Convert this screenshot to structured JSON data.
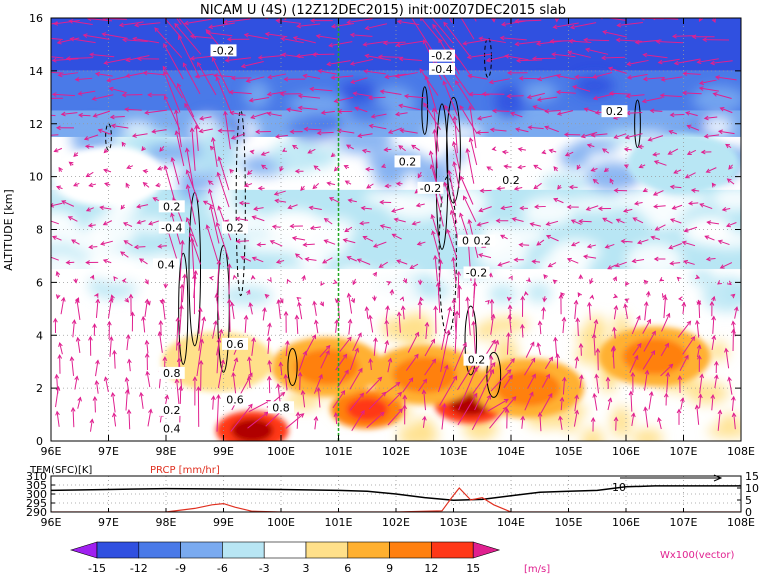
{
  "title": "NICAM U (4S) (12Z12DEC2015) init:00Z07DEC2015 slab",
  "main_ylabel": "ALTITUDE [km]",
  "x_ticks": [
    "96E",
    "97E",
    "98E",
    "99E",
    "100E",
    "101E",
    "102E",
    "103E",
    "104E",
    "105E",
    "106E",
    "107E",
    "108E"
  ],
  "y_ticks": [
    "0",
    "2",
    "4",
    "6",
    "8",
    "10",
    "12",
    "14",
    "16"
  ],
  "contour_labels": [
    "-0.2",
    "0.2",
    "-0.4",
    "0.2",
    "0.4",
    "0.6",
    "0.8",
    "0.2",
    "0.4",
    "0.6",
    "0.8",
    "0.2",
    "0.2",
    "-0.2",
    "0.2",
    "-0.2",
    "-0.4",
    "0.2",
    "0.2",
    "-0.2",
    "0.2"
  ],
  "sub_left_label": "TEM(SFC)[K]",
  "sub_right_label": "PRCP [mm/hr]",
  "sub_left_ticks": [
    "310",
    "305",
    "300",
    "295",
    "290"
  ],
  "sub_right_ticks": [
    "15",
    "10",
    "5",
    "0"
  ],
  "sub_arrow_label": "10",
  "colorbar_ticks": [
    "-15",
    "-12",
    "-9",
    "-6",
    "-3",
    "3",
    "6",
    "9",
    "12",
    "15"
  ],
  "colorbar_unit": "[m/s]",
  "vector_label": "Wx100(vector)",
  "colors": {
    "accent_vector": "#e0208f",
    "precip": "#e03020",
    "vertical_line": "#22aa22"
  },
  "chart_data": [
    {
      "type": "heatmap",
      "title": "NICAM U (4S) (12Z12DEC2015) init:00Z07DEC2015 slab",
      "ylabel": "ALTITUDE [km]",
      "xlim": [
        96,
        108
      ],
      "ylim": [
        0,
        16
      ],
      "x_ticks": [
        "96E",
        "97E",
        "98E",
        "99E",
        "100E",
        "101E",
        "102E",
        "103E",
        "104E",
        "105E",
        "106E",
        "107E",
        "108E"
      ],
      "y_ticks": [
        0,
        2,
        4,
        6,
        8,
        10,
        12,
        14,
        16
      ],
      "color_levels": [
        -15,
        -12,
        -9,
        -6,
        -3,
        3,
        6,
        9,
        12,
        15
      ],
      "color_unit": "[m/s]",
      "colors": [
        "#a020f0",
        "#3050e0",
        "#4a7ae8",
        "#7aaaf0",
        "#b8e6f4",
        "#ffffff",
        "#ffe08a",
        "#ffb030",
        "#ff8010",
        "#ff3818",
        "#b00000"
      ],
      "layers": [
        {
          "ymin": 14.0,
          "ymax": 16.0,
          "u": -15
        },
        {
          "ymin": 12.5,
          "ymax": 14.0,
          "u": -12
        },
        {
          "ymin": 11.5,
          "ymax": 12.5,
          "u": -9
        },
        {
          "ymin": 9.5,
          "ymax": 11.5,
          "u": -3
        },
        {
          "ymin": 6.5,
          "ymax": 9.5,
          "u": -6
        },
        {
          "ymin": 5.0,
          "ymax": 6.5,
          "u": 0
        },
        {
          "ymin": 0.0,
          "ymax": 5.0,
          "u": 0
        }
      ],
      "blobs": [
        {
          "x": 99.5,
          "y": 0.4,
          "u": 12
        },
        {
          "x": 103.3,
          "y": 1.4,
          "u": 12
        },
        {
          "x": 101.5,
          "y": 1.2,
          "u": 9
        },
        {
          "x": 102.5,
          "y": 2.5,
          "u": 6
        },
        {
          "x": 104.3,
          "y": 2.0,
          "u": 6
        },
        {
          "x": 106.5,
          "y": 3.2,
          "u": 6
        },
        {
          "x": 100.8,
          "y": 2.8,
          "u": 6
        },
        {
          "x": 98.9,
          "y": 3.0,
          "u": 3
        },
        {
          "x": 107.0,
          "y": 10.5,
          "u": -6
        },
        {
          "x": 97.0,
          "y": 10.0,
          "u": -3
        }
      ],
      "vertical_marker_x": 101.0
    },
    {
      "type": "line",
      "xlim": [
        96,
        108
      ],
      "left_ylabel": "TEM(SFC)[K]",
      "left_ylim": [
        290,
        310
      ],
      "right_ylabel": "PRCP [mm/hr]",
      "right_ylim": [
        0,
        15
      ],
      "series": [
        {
          "x": [
            96,
            97,
            98,
            99,
            100,
            101,
            101.5,
            102,
            102.5,
            103,
            103.5,
            104,
            104.5,
            105,
            105.5,
            106,
            106.5,
            107,
            108
          ],
          "y": [
            302,
            302.5,
            303,
            302.8,
            302.5,
            302,
            301.5,
            300,
            298,
            296.5,
            297,
            299,
            301,
            301.5,
            302,
            304,
            304.5,
            304.5,
            304.5
          ]
        },
        {
          "x": [
            96,
            97,
            98,
            98.5,
            98.8,
            99,
            99.2,
            99.5,
            100,
            101,
            102,
            102.8,
            103,
            103.1,
            103.3,
            103.5,
            103.7,
            104,
            105,
            106,
            107,
            108
          ],
          "y": [
            0,
            0,
            0,
            1.5,
            3,
            3.5,
            2,
            0.3,
            0,
            0,
            0,
            0.5,
            7,
            10,
            5,
            6,
            3,
            0,
            0,
            0,
            0,
            0
          ]
        }
      ]
    }
  ]
}
